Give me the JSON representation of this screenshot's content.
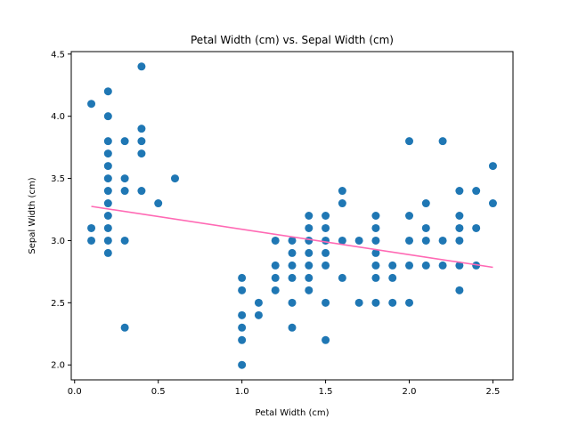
{
  "chart_data": {
    "type": "scatter",
    "title": "Petal Width (cm) vs. Sepal Width (cm)",
    "xlabel": "Petal Width (cm)",
    "ylabel": "Sepal Width (cm)",
    "xlim": [
      -0.02,
      2.62
    ],
    "ylim": [
      1.88,
      4.52
    ],
    "xticks": [
      0.0,
      0.5,
      1.0,
      1.5,
      2.0,
      2.5
    ],
    "xtick_labels": [
      "0.0",
      "0.5",
      "1.0",
      "1.5",
      "2.0",
      "2.5"
    ],
    "yticks": [
      2.0,
      2.5,
      3.0,
      3.5,
      4.0,
      4.5
    ],
    "ytick_labels": [
      "2.0",
      "2.5",
      "3.0",
      "3.5",
      "4.0",
      "4.5"
    ],
    "grid": false,
    "marker_color": "#1f77b4",
    "trendline": {
      "x": [
        0.1,
        2.5
      ],
      "y": [
        3.275,
        2.785
      ],
      "color": "#ff69b4"
    },
    "points": [
      [
        0.1,
        4.1
      ],
      [
        0.1,
        3.1
      ],
      [
        0.1,
        3.0
      ],
      [
        0.2,
        4.2
      ],
      [
        0.2,
        4.0
      ],
      [
        0.2,
        3.8
      ],
      [
        0.2,
        3.7
      ],
      [
        0.2,
        3.6
      ],
      [
        0.2,
        3.5
      ],
      [
        0.2,
        3.4
      ],
      [
        0.2,
        3.3
      ],
      [
        0.2,
        3.2
      ],
      [
        0.2,
        3.1
      ],
      [
        0.2,
        3.0
      ],
      [
        0.2,
        2.9
      ],
      [
        0.3,
        3.8
      ],
      [
        0.3,
        3.5
      ],
      [
        0.3,
        3.4
      ],
      [
        0.3,
        3.0
      ],
      [
        0.3,
        2.3
      ],
      [
        0.4,
        4.4
      ],
      [
        0.4,
        3.9
      ],
      [
        0.4,
        3.8
      ],
      [
        0.4,
        3.7
      ],
      [
        0.4,
        3.4
      ],
      [
        0.5,
        3.3
      ],
      [
        0.6,
        3.5
      ],
      [
        1.0,
        2.7
      ],
      [
        1.0,
        2.6
      ],
      [
        1.0,
        2.4
      ],
      [
        1.0,
        2.3
      ],
      [
        1.0,
        2.2
      ],
      [
        1.0,
        2.0
      ],
      [
        1.1,
        2.5
      ],
      [
        1.1,
        2.4
      ],
      [
        1.2,
        3.0
      ],
      [
        1.2,
        2.8
      ],
      [
        1.2,
        2.7
      ],
      [
        1.2,
        2.6
      ],
      [
        1.3,
        3.0
      ],
      [
        1.3,
        2.9
      ],
      [
        1.3,
        2.8
      ],
      [
        1.3,
        2.7
      ],
      [
        1.3,
        2.5
      ],
      [
        1.3,
        2.3
      ],
      [
        1.4,
        3.2
      ],
      [
        1.4,
        3.1
      ],
      [
        1.4,
        3.0
      ],
      [
        1.4,
        2.9
      ],
      [
        1.4,
        2.8
      ],
      [
        1.4,
        2.7
      ],
      [
        1.4,
        2.6
      ],
      [
        1.5,
        3.2
      ],
      [
        1.5,
        3.1
      ],
      [
        1.5,
        3.0
      ],
      [
        1.5,
        2.9
      ],
      [
        1.5,
        2.8
      ],
      [
        1.5,
        2.5
      ],
      [
        1.5,
        2.2
      ],
      [
        1.6,
        3.4
      ],
      [
        1.6,
        3.3
      ],
      [
        1.6,
        3.0
      ],
      [
        1.6,
        2.7
      ],
      [
        1.7,
        3.0
      ],
      [
        1.7,
        2.5
      ],
      [
        1.8,
        3.2
      ],
      [
        1.8,
        3.1
      ],
      [
        1.8,
        3.0
      ],
      [
        1.8,
        2.9
      ],
      [
        1.8,
        2.8
      ],
      [
        1.8,
        2.7
      ],
      [
        1.8,
        2.5
      ],
      [
        1.9,
        2.8
      ],
      [
        1.9,
        2.7
      ],
      [
        1.9,
        2.5
      ],
      [
        2.0,
        3.8
      ],
      [
        2.0,
        3.2
      ],
      [
        2.0,
        3.0
      ],
      [
        2.0,
        2.8
      ],
      [
        2.0,
        2.5
      ],
      [
        2.1,
        3.3
      ],
      [
        2.1,
        3.1
      ],
      [
        2.1,
        3.0
      ],
      [
        2.1,
        2.8
      ],
      [
        2.2,
        3.8
      ],
      [
        2.2,
        3.0
      ],
      [
        2.2,
        2.8
      ],
      [
        2.3,
        3.4
      ],
      [
        2.3,
        3.2
      ],
      [
        2.3,
        3.1
      ],
      [
        2.3,
        3.0
      ],
      [
        2.3,
        2.8
      ],
      [
        2.3,
        2.6
      ],
      [
        2.4,
        3.4
      ],
      [
        2.4,
        3.1
      ],
      [
        2.4,
        2.8
      ],
      [
        2.5,
        3.6
      ],
      [
        2.5,
        3.3
      ]
    ]
  }
}
